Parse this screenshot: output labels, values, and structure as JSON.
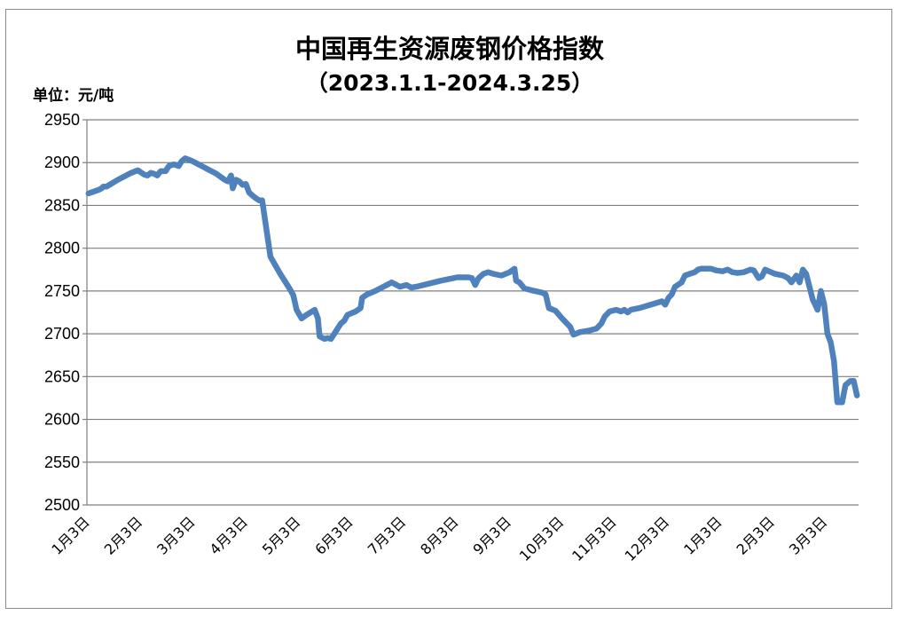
{
  "chart_data": {
    "type": "line",
    "title": "中国再生资源废钢价格指数",
    "subtitle": "（2023.1.1-2024.3.25）",
    "unit_label": "单位：元/吨",
    "xlabel": "",
    "ylabel": "",
    "ylim": [
      2500,
      2950
    ],
    "ytick_step": 50,
    "yticks": [
      "2950",
      "2900",
      "2850",
      "2800",
      "2750",
      "2700",
      "2650",
      "2600",
      "2550",
      "2500"
    ],
    "grid": true,
    "legend": "none",
    "line_color": "#4f81bd",
    "categories": [
      "1月3日",
      "2月3日",
      "3月3日",
      "4月3日",
      "5月3日",
      "6月3日",
      "7月3日",
      "8月3日",
      "9月3日",
      "10月3日",
      "11月3日",
      "12月3日",
      "1月3日",
      "2月3日",
      "3月3日"
    ],
    "series": [
      {
        "values": [
          [
            0,
            2864
          ],
          [
            3,
            2866
          ],
          [
            6,
            2868
          ],
          [
            8,
            2870
          ],
          [
            9,
            2872
          ],
          [
            11,
            2872
          ],
          [
            18,
            2880
          ],
          [
            26,
            2888
          ],
          [
            30,
            2891
          ],
          [
            34,
            2886
          ],
          [
            36,
            2885
          ],
          [
            38,
            2888
          ],
          [
            40,
            2887
          ],
          [
            42,
            2885
          ],
          [
            44,
            2890
          ],
          [
            47,
            2890
          ],
          [
            49,
            2896
          ],
          [
            52,
            2898
          ],
          [
            55,
            2896
          ],
          [
            57,
            2902
          ],
          [
            59,
            2905
          ],
          [
            63,
            2902
          ],
          [
            70,
            2895
          ],
          [
            78,
            2887
          ],
          [
            83,
            2880
          ],
          [
            85,
            2878
          ],
          [
            87,
            2885
          ],
          [
            88,
            2870
          ],
          [
            90,
            2880
          ],
          [
            92,
            2878
          ],
          [
            94,
            2874
          ],
          [
            96,
            2875
          ],
          [
            98,
            2865
          ],
          [
            101,
            2860
          ],
          [
            104,
            2856
          ],
          [
            106,
            2856
          ],
          [
            111,
            2790
          ],
          [
            117,
            2770
          ],
          [
            123,
            2752
          ],
          [
            125,
            2745
          ],
          [
            127,
            2728
          ],
          [
            130,
            2718
          ],
          [
            133,
            2722
          ],
          [
            138,
            2728
          ],
          [
            140,
            2718
          ],
          [
            141,
            2697
          ],
          [
            144,
            2694
          ],
          [
            146,
            2695
          ],
          [
            148,
            2694
          ],
          [
            152,
            2706
          ],
          [
            154,
            2712
          ],
          [
            156,
            2715
          ],
          [
            158,
            2722
          ],
          [
            163,
            2726
          ],
          [
            166,
            2730
          ],
          [
            167,
            2742
          ],
          [
            170,
            2746
          ],
          [
            175,
            2750
          ],
          [
            185,
            2760
          ],
          [
            188,
            2757
          ],
          [
            190,
            2755
          ],
          [
            194,
            2757
          ],
          [
            197,
            2754
          ],
          [
            200,
            2755
          ],
          [
            215,
            2762
          ],
          [
            225,
            2766
          ],
          [
            232,
            2766
          ],
          [
            234,
            2765
          ],
          [
            236,
            2757
          ],
          [
            238,
            2765
          ],
          [
            241,
            2770
          ],
          [
            244,
            2772
          ],
          [
            247,
            2770
          ],
          [
            252,
            2768
          ],
          [
            257,
            2772
          ],
          [
            260,
            2776
          ],
          [
            261,
            2762
          ],
          [
            263,
            2760
          ],
          [
            266,
            2753
          ],
          [
            270,
            2751
          ],
          [
            277,
            2748
          ],
          [
            279,
            2746
          ],
          [
            281,
            2730
          ],
          [
            285,
            2727
          ],
          [
            289,
            2718
          ],
          [
            292,
            2712
          ],
          [
            294,
            2708
          ],
          [
            296,
            2699
          ],
          [
            300,
            2702
          ],
          [
            306,
            2704
          ],
          [
            310,
            2706
          ],
          [
            313,
            2712
          ],
          [
            315,
            2720
          ],
          [
            318,
            2726
          ],
          [
            322,
            2728
          ],
          [
            325,
            2726
          ],
          [
            327,
            2728
          ],
          [
            329,
            2725
          ],
          [
            331,
            2728
          ],
          [
            336,
            2730
          ],
          [
            350,
            2738
          ],
          [
            352,
            2734
          ],
          [
            354,
            2742
          ],
          [
            356,
            2746
          ],
          [
            358,
            2755
          ],
          [
            362,
            2760
          ],
          [
            364,
            2768
          ],
          [
            367,
            2770
          ],
          [
            370,
            2772
          ],
          [
            372,
            2775
          ],
          [
            374,
            2776
          ],
          [
            380,
            2776
          ],
          [
            383,
            2774
          ],
          [
            387,
            2773
          ],
          [
            390,
            2775
          ],
          [
            393,
            2772
          ],
          [
            396,
            2771
          ],
          [
            400,
            2772
          ],
          [
            404,
            2775
          ],
          [
            406,
            2774
          ],
          [
            409,
            2765
          ],
          [
            411,
            2767
          ],
          [
            413,
            2775
          ],
          [
            419,
            2770
          ],
          [
            424,
            2768
          ],
          [
            427,
            2765
          ],
          [
            429,
            2760
          ],
          [
            432,
            2768
          ],
          [
            434,
            2760
          ],
          [
            436,
            2775
          ],
          [
            438,
            2770
          ],
          [
            440,
            2755
          ],
          [
            442,
            2740
          ],
          [
            445,
            2728
          ],
          [
            447,
            2750
          ],
          [
            449,
            2735
          ],
          [
            451,
            2700
          ],
          [
            453,
            2690
          ],
          [
            455,
            2668
          ],
          [
            457,
            2620
          ],
          [
            460,
            2620
          ],
          [
            462,
            2640
          ],
          [
            465,
            2645
          ],
          [
            467,
            2645
          ],
          [
            469,
            2628
          ]
        ]
      }
    ]
  }
}
